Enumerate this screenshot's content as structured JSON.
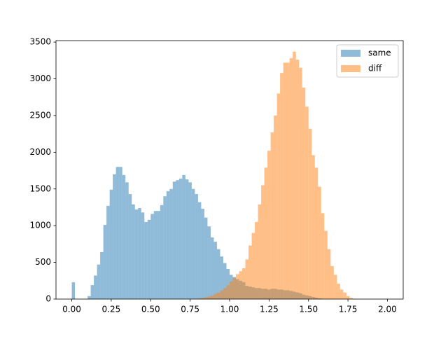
{
  "chart_data": {
    "type": "histogram",
    "bins": [
      0,
      0.02,
      0.04,
      0.06,
      0.08,
      0.1,
      0.12,
      0.14,
      0.16,
      0.18,
      0.2,
      0.22,
      0.24,
      0.26,
      0.28,
      0.3,
      0.32,
      0.34,
      0.36,
      0.38,
      0.4,
      0.42,
      0.44,
      0.46,
      0.48,
      0.5,
      0.52,
      0.54,
      0.56,
      0.58,
      0.6,
      0.62,
      0.64,
      0.66,
      0.68,
      0.7,
      0.72,
      0.74,
      0.76,
      0.78,
      0.8,
      0.82,
      0.84,
      0.86,
      0.88,
      0.9,
      0.92,
      0.94,
      0.96,
      0.98,
      1,
      1.02,
      1.04,
      1.06,
      1.08,
      1.1,
      1.12,
      1.14,
      1.16,
      1.18,
      1.2,
      1.22,
      1.24,
      1.26,
      1.28,
      1.3,
      1.32,
      1.34,
      1.36,
      1.38,
      1.4,
      1.42,
      1.44,
      1.46,
      1.48,
      1.5,
      1.52,
      1.54,
      1.56,
      1.58,
      1.6,
      1.62,
      1.64,
      1.66,
      1.68,
      1.7,
      1.72,
      1.74,
      1.76,
      1.78,
      1.8,
      1.82,
      1.84,
      1.86,
      1.88,
      1.9,
      1.92,
      1.94,
      1.96,
      1.98,
      2
    ],
    "series": [
      {
        "name": "same",
        "color": "#1f77b4",
        "values": [
          230,
          0,
          0,
          0,
          0,
          40,
          190,
          320,
          470,
          640,
          1010,
          1270,
          1490,
          1700,
          1800,
          1800,
          1690,
          1590,
          1430,
          1290,
          1220,
          1240,
          1180,
          1050,
          1080,
          1160,
          1200,
          1200,
          1280,
          1400,
          1470,
          1500,
          1600,
          1620,
          1640,
          1690,
          1630,
          1590,
          1500,
          1430,
          1320,
          1230,
          1110,
          990,
          840,
          780,
          680,
          580,
          490,
          410,
          330,
          300,
          270,
          250,
          230,
          180,
          170,
          160,
          150,
          150,
          140,
          140,
          130,
          140,
          140,
          130,
          130,
          120,
          120,
          110,
          100,
          90,
          80,
          60,
          50,
          40,
          30,
          20,
          10,
          5,
          0,
          0,
          0,
          0,
          0,
          0,
          0,
          0,
          0,
          0,
          0,
          0,
          0,
          0,
          0,
          0,
          0,
          0,
          0,
          0
        ]
      },
      {
        "name": "diff",
        "color": "#ff7f0e",
        "values": [
          0,
          0,
          0,
          0,
          0,
          0,
          0,
          0,
          0,
          0,
          0,
          0,
          0,
          0,
          0,
          0,
          0,
          0,
          0,
          0,
          0,
          0,
          0,
          0,
          0,
          0,
          0,
          0,
          0,
          0,
          0,
          0,
          0,
          0,
          0,
          0,
          0,
          0,
          0,
          5,
          10,
          15,
          25,
          35,
          50,
          70,
          90,
          120,
          150,
          190,
          240,
          290,
          340,
          380,
          420,
          540,
          730,
          900,
          1050,
          1290,
          1550,
          1790,
          2020,
          2270,
          2500,
          2800,
          3080,
          3220,
          3220,
          3280,
          3370,
          3260,
          3150,
          2880,
          2620,
          2320,
          1960,
          1790,
          1530,
          1170,
          930,
          680,
          450,
          330,
          210,
          130,
          90,
          40,
          15,
          5,
          0,
          0,
          0,
          0,
          0,
          0,
          0,
          0,
          0,
          0
        ]
      }
    ],
    "alpha": 0.5,
    "xlim": [
      -0.1,
      2.1
    ],
    "xticks": [
      {
        "value": 0,
        "label": "0.00"
      },
      {
        "value": 0.25,
        "label": "0.25"
      },
      {
        "value": 0.5,
        "label": "0.50"
      },
      {
        "value": 0.75,
        "label": "0.75"
      },
      {
        "value": 1,
        "label": "1.00"
      },
      {
        "value": 1.25,
        "label": "1.25"
      },
      {
        "value": 1.5,
        "label": "1.50"
      },
      {
        "value": 1.75,
        "label": "1.75"
      },
      {
        "value": 2,
        "label": "2.00"
      }
    ],
    "ylim": [
      0,
      3520
    ],
    "yticks": [
      0,
      500,
      1000,
      1500,
      2000,
      2500,
      3000,
      3500
    ],
    "legend": "upper right"
  }
}
